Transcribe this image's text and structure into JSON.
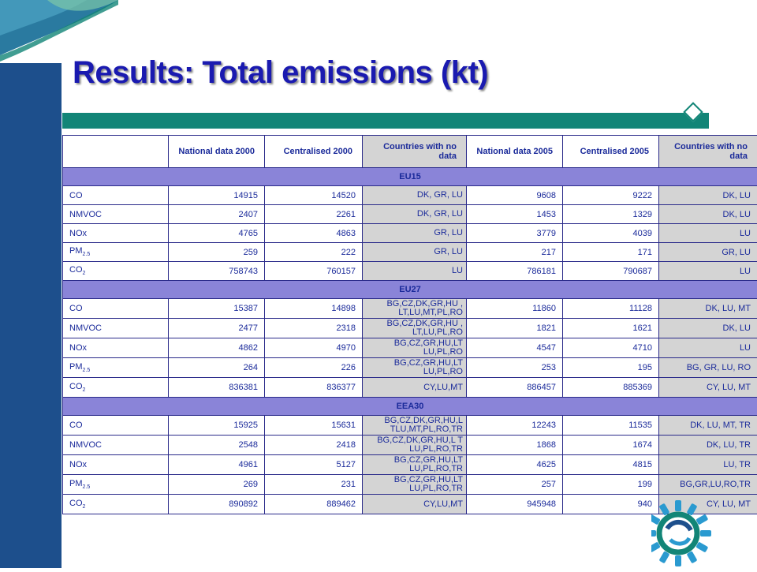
{
  "title": "Results: Total emissions (kt)",
  "columns": [
    "",
    "National data 2000",
    "Centralised 2000",
    "Countries with no data",
    "National data 2005",
    "Centralised 2005",
    "Countries with no data"
  ],
  "groups": [
    {
      "name": "EU15",
      "rows": [
        {
          "pollutant": "CO",
          "sub": "",
          "nat2000": "14915",
          "cen2000": "14520",
          "nd2000": "DK, GR, LU",
          "nat2005": "9608",
          "cen2005": "9222",
          "nd2005": "DK, LU"
        },
        {
          "pollutant": "NMVOC",
          "sub": "",
          "nat2000": "2407",
          "cen2000": "2261",
          "nd2000": "DK, GR, LU",
          "nat2005": "1453",
          "cen2005": "1329",
          "nd2005": "DK, LU"
        },
        {
          "pollutant": "NOx",
          "sub": "",
          "nat2000": "4765",
          "cen2000": "4863",
          "nd2000": "GR, LU",
          "nat2005": "3779",
          "cen2005": "4039",
          "nd2005": "LU"
        },
        {
          "pollutant": "PM",
          "sub": "2.5",
          "nat2000": "259",
          "cen2000": "222",
          "nd2000": "GR, LU",
          "nat2005": "217",
          "cen2005": "171",
          "nd2005": "GR, LU"
        },
        {
          "pollutant": "CO",
          "sub": "2",
          "nat2000": "758743",
          "cen2000": "760157",
          "nd2000": "LU",
          "nat2005": "786181",
          "cen2005": "790687",
          "nd2005": "LU"
        }
      ]
    },
    {
      "name": "EU27",
      "rows": [
        {
          "pollutant": "CO",
          "sub": "",
          "nat2000": "15387",
          "cen2000": "14898",
          "nd2000": "BG,CZ,DK,GR,HU , LT,LU,MT,PL,RO",
          "nat2005": "11860",
          "cen2005": "11128",
          "nd2005": "DK, LU, MT"
        },
        {
          "pollutant": "NMVOC",
          "sub": "",
          "nat2000": "2477",
          "cen2000": "2318",
          "nd2000": "BG,CZ,DK,GR,HU , LT,LU,PL,RO",
          "nat2005": "1821",
          "cen2005": "1621",
          "nd2005": "DK, LU"
        },
        {
          "pollutant": "NOx",
          "sub": "",
          "nat2000": "4862",
          "cen2000": "4970",
          "nd2000": "BG,CZ,GR,HU,LT LU,PL,RO",
          "nat2005": "4547",
          "cen2005": "4710",
          "nd2005": "LU"
        },
        {
          "pollutant": "PM",
          "sub": "2.5",
          "nat2000": "264",
          "cen2000": "226",
          "nd2000": "BG,CZ,GR,HU,LT LU,PL,RO",
          "nat2005": "253",
          "cen2005": "195",
          "nd2005": "BG, GR, LU, RO"
        },
        {
          "pollutant": "CO",
          "sub": "2",
          "nat2000": "836381",
          "cen2000": "836377",
          "nd2000": "CY,LU,MT",
          "nat2005": "886457",
          "cen2005": "885369",
          "nd2005": "CY, LU, MT"
        }
      ]
    },
    {
      "name": "EEA30",
      "rows": [
        {
          "pollutant": "CO",
          "sub": "",
          "nat2000": "15925",
          "cen2000": "15631",
          "nd2000": "BG,CZ,DK,GR,HU,L TLU,MT,PL,RO,TR",
          "nat2005": "12243",
          "cen2005": "11535",
          "nd2005": "DK, LU, MT, TR"
        },
        {
          "pollutant": "NMVOC",
          "sub": "",
          "nat2000": "2548",
          "cen2000": "2418",
          "nd2000": "BG,CZ,DK,GR,HU,L T LU,PL,RO,TR",
          "nat2005": "1868",
          "cen2005": "1674",
          "nd2005": "DK, LU, TR"
        },
        {
          "pollutant": "NOx",
          "sub": "",
          "nat2000": "4961",
          "cen2000": "5127",
          "nd2000": "BG,CZ,GR,HU,LT LU,PL,RO,TR",
          "nat2005": "4625",
          "cen2005": "4815",
          "nd2005": "LU, TR"
        },
        {
          "pollutant": "PM",
          "sub": "2.5",
          "nat2000": "269",
          "cen2000": "231",
          "nd2000": "BG,CZ,GR,HU,LT LU,PL,RO,TR",
          "nat2005": "257",
          "cen2005": "199",
          "nd2005": "BG,GR,LU,RO,TR"
        },
        {
          "pollutant": "CO",
          "sub": "2",
          "nat2000": "890892",
          "cen2000": "889462",
          "nd2000": "CY,LU,MT",
          "nat2005": "945948",
          "cen2005": "940",
          "nd2005": "CY, LU, MT"
        }
      ]
    }
  ],
  "colors": {
    "side_bar": "#1d4f8c",
    "rule": "#128577",
    "group_row": "#8a84d8",
    "no_data_cells": "#d4d4d4",
    "title": "#1a1ab0"
  }
}
